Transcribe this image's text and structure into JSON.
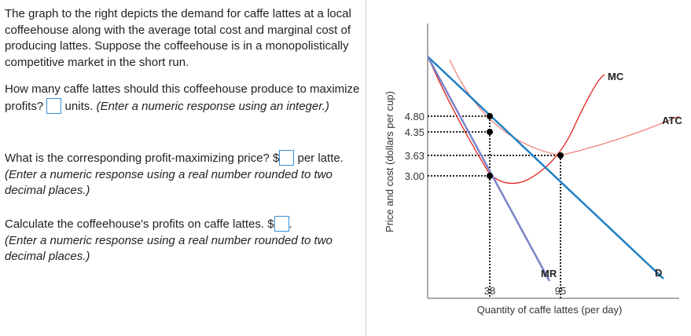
{
  "question": {
    "intro": "The graph to the right depicts the demand for caffe lattes at a local coffeehouse along with the average total cost and marginal cost of producing lattes.  Suppose the coffeehouse is in a monopolistically competitive market in the short run.",
    "q1_a": "How many caffe lattes should this coffeehouse produce to maximize profits?",
    "q1_b": "units.",
    "q1_note": "(Enter a numeric response using an integer.)",
    "q2_a": "What is the corresponding profit-maximizing price?",
    "q2_dollar": "$",
    "q2_b": "per latte.",
    "q2_note": "(Enter a numeric response using a real number rounded to two decimal places.)",
    "q3_a": "Calculate the coffeehouse's profits on caffe lattes.",
    "q3_dollar": "$",
    "q3_b": ".",
    "q3_note": "(Enter a numeric response using a real number rounded to two decimal places.)"
  },
  "chart_data": {
    "type": "line",
    "ylabel": "Price and cost (dollars per cup)",
    "xlabel": "Quantity of caffe lattes (per day)",
    "y_ticks": [
      "4.80",
      "4.35",
      "3.63",
      "3.00"
    ],
    "x_ticks": [
      "38",
      "95"
    ],
    "series": [
      {
        "name": "D",
        "color": "#1f7fc4"
      },
      {
        "name": "MR",
        "color": "#7b83c9"
      },
      {
        "name": "MC",
        "color": "#e2221c"
      },
      {
        "name": "ATC",
        "color": "#f08478"
      }
    ],
    "points": [
      {
        "q": 38,
        "p": 4.8
      },
      {
        "q": 38,
        "p": 4.35
      },
      {
        "q": 38,
        "p": 3.0
      },
      {
        "q": 95,
        "p": 3.63
      }
    ]
  }
}
